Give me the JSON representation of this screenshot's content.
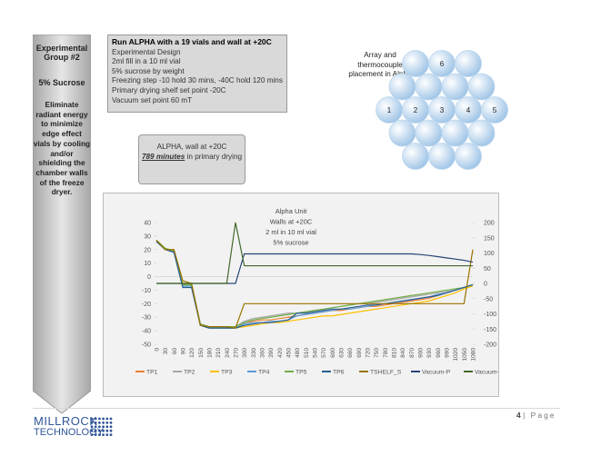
{
  "sidebar": {
    "title": "Experimental Group #2",
    "subtitle": "5% Sucrose",
    "text": "Eliminate radiant energy to minimize edge effect vials by cooling and/or shielding the chamber walls of the freeze dryer."
  },
  "design_box": {
    "heading": "Run ALPHA with a 19 vials and wall at +20C",
    "lines": [
      "Experimental Design",
      "2ml fill in a 10 ml vial",
      "5% sucrose by weight",
      "Freezing step -10 hold 30 mins, -40C hold 120 mins",
      "Primary drying shelf set point -20C",
      "Vacuum set point 60 mT"
    ]
  },
  "result_box": {
    "line1": "ALPHA, wall at +20C",
    "emphasis": "789 minutes",
    "line2": "in primary drying"
  },
  "array": {
    "caption": "Array and thermocouple placement in Alpha",
    "labels": [
      "1",
      "2",
      "3",
      "4",
      "5",
      "6"
    ]
  },
  "chart_data": {
    "type": "line",
    "title": [
      "Alpha Unit",
      "Walls at +20C",
      "2 ml in 10 ml vial",
      "5% sucrose"
    ],
    "x": [
      0,
      30,
      60,
      90,
      120,
      150,
      180,
      210,
      240,
      270,
      300,
      330,
      360,
      390,
      420,
      450,
      480,
      510,
      540,
      570,
      600,
      630,
      660,
      690,
      720,
      750,
      780,
      810,
      840,
      870,
      900,
      930,
      960,
      990,
      1020,
      1050,
      1080
    ],
    "xlim": [
      0,
      1080
    ],
    "ylim": [
      -50,
      40
    ],
    "yticks": [
      -50,
      -40,
      -30,
      -20,
      -10,
      0,
      10,
      20,
      30,
      40
    ],
    "y2lim": [
      -200,
      200
    ],
    "y2ticks": [
      -200,
      -150,
      -100,
      -50,
      0,
      50,
      100,
      150,
      200
    ],
    "grid": false,
    "legend": "bottom",
    "series": [
      {
        "name": "TP1",
        "color": "#ed7d31",
        "values": [
          27,
          20,
          19,
          -5,
          -5,
          -35,
          -37,
          -37,
          -37,
          -37,
          -34,
          -33,
          -32,
          -32,
          -31,
          -30,
          -29,
          -28,
          -27,
          -26,
          -25,
          -25,
          -24,
          -23,
          -22,
          -22,
          -21,
          -20,
          -19,
          -18,
          -17,
          -16,
          -14,
          -12,
          -10,
          -8,
          -6
        ]
      },
      {
        "name": "TP2",
        "color": "#a5a5a5",
        "values": [
          26,
          20,
          19,
          -6,
          -6,
          -35,
          -37,
          -37,
          -37,
          -37,
          -33,
          -31,
          -30,
          -29,
          -28,
          -27,
          -27,
          -26,
          -25,
          -24,
          -23,
          -22,
          -21,
          -20,
          -20,
          -19,
          -18,
          -17,
          -16,
          -15,
          -14,
          -13,
          -12,
          -11,
          -10,
          -8,
          -6
        ]
      },
      {
        "name": "TP3",
        "color": "#ffc000",
        "values": [
          27,
          21,
          19,
          -5,
          -6,
          -36,
          -38,
          -38,
          -38,
          -38,
          -37,
          -36,
          -35,
          -34,
          -34,
          -33,
          -32,
          -31,
          -30,
          -29,
          -29,
          -28,
          -27,
          -26,
          -25,
          -24,
          -23,
          -22,
          -21,
          -20,
          -19,
          -18,
          -16,
          -14,
          -12,
          -9,
          -7
        ]
      },
      {
        "name": "TP4",
        "color": "#5b9bd5",
        "values": [
          26,
          20,
          18,
          -7,
          -7,
          -36,
          -38,
          -38,
          -38,
          -38,
          -35,
          -34,
          -34,
          -33,
          -33,
          -32,
          -29,
          -28,
          -27,
          -26,
          -25,
          -24,
          -24,
          -23,
          -22,
          -21,
          -20,
          -19,
          -18,
          -17,
          -16,
          -15,
          -13,
          -12,
          -10,
          -8,
          -6
        ]
      },
      {
        "name": "TP5",
        "color": "#70ad47",
        "values": [
          27,
          21,
          19,
          -6,
          -6,
          -35,
          -37,
          -37,
          -37,
          -37,
          -34,
          -32,
          -31,
          -30,
          -29,
          -28,
          -27,
          -26,
          -25,
          -24,
          -23,
          -22,
          -21,
          -20,
          -19,
          -18,
          -17,
          -16,
          -15,
          -14,
          -13,
          -12,
          -11,
          -10,
          -9,
          -8,
          -6
        ]
      },
      {
        "name": "TP6",
        "color": "#255e91",
        "values": [
          26,
          20,
          18,
          -8,
          -8,
          -36,
          -38,
          -38,
          -38,
          -38,
          -36,
          -35,
          -34,
          -34,
          -33,
          -32,
          -27,
          -27,
          -26,
          -25,
          -24,
          -24,
          -23,
          -22,
          -21,
          -21,
          -20,
          -19,
          -18,
          -17,
          -16,
          -15,
          -14,
          -12,
          -10,
          -8,
          -6
        ]
      },
      {
        "name": "TSHELF_S",
        "color": "#997300",
        "values": [
          27,
          20,
          20,
          -3,
          -5,
          -36,
          -37,
          -37,
          -37,
          -38,
          -20,
          -20,
          -20,
          -20,
          -20,
          -20,
          -20,
          -20,
          -20,
          -20,
          -20,
          -20,
          -20,
          -20,
          -20,
          -20,
          -20,
          -20,
          -20,
          -20,
          -20,
          -20,
          -20,
          -20,
          -20,
          -20,
          20
        ]
      },
      {
        "name": "Vacuum-P",
        "color": "#264478",
        "axis": "y2",
        "values": [
          0,
          0,
          0,
          0,
          0,
          0,
          0,
          0,
          0,
          0,
          97,
          97,
          97,
          97,
          97,
          97,
          97,
          97,
          97,
          97,
          97,
          97,
          97,
          97,
          97,
          97,
          97,
          97,
          97,
          97,
          95,
          92,
          88,
          84,
          80,
          76,
          70
        ]
      },
      {
        "name": "Vacuum-c",
        "color": "#43682b",
        "axis": "y2",
        "values": [
          0,
          0,
          0,
          0,
          0,
          0,
          0,
          0,
          0,
          200,
          58,
          58,
          58,
          58,
          58,
          58,
          58,
          58,
          58,
          58,
          58,
          58,
          58,
          58,
          58,
          58,
          58,
          58,
          58,
          58,
          58,
          58,
          58,
          58,
          58,
          58,
          58
        ]
      }
    ]
  },
  "footer": {
    "logo_top": "MILLROCK",
    "logo_bottom": "TECHNOLOGY",
    "page_number": "4",
    "page_label": "| Page"
  }
}
